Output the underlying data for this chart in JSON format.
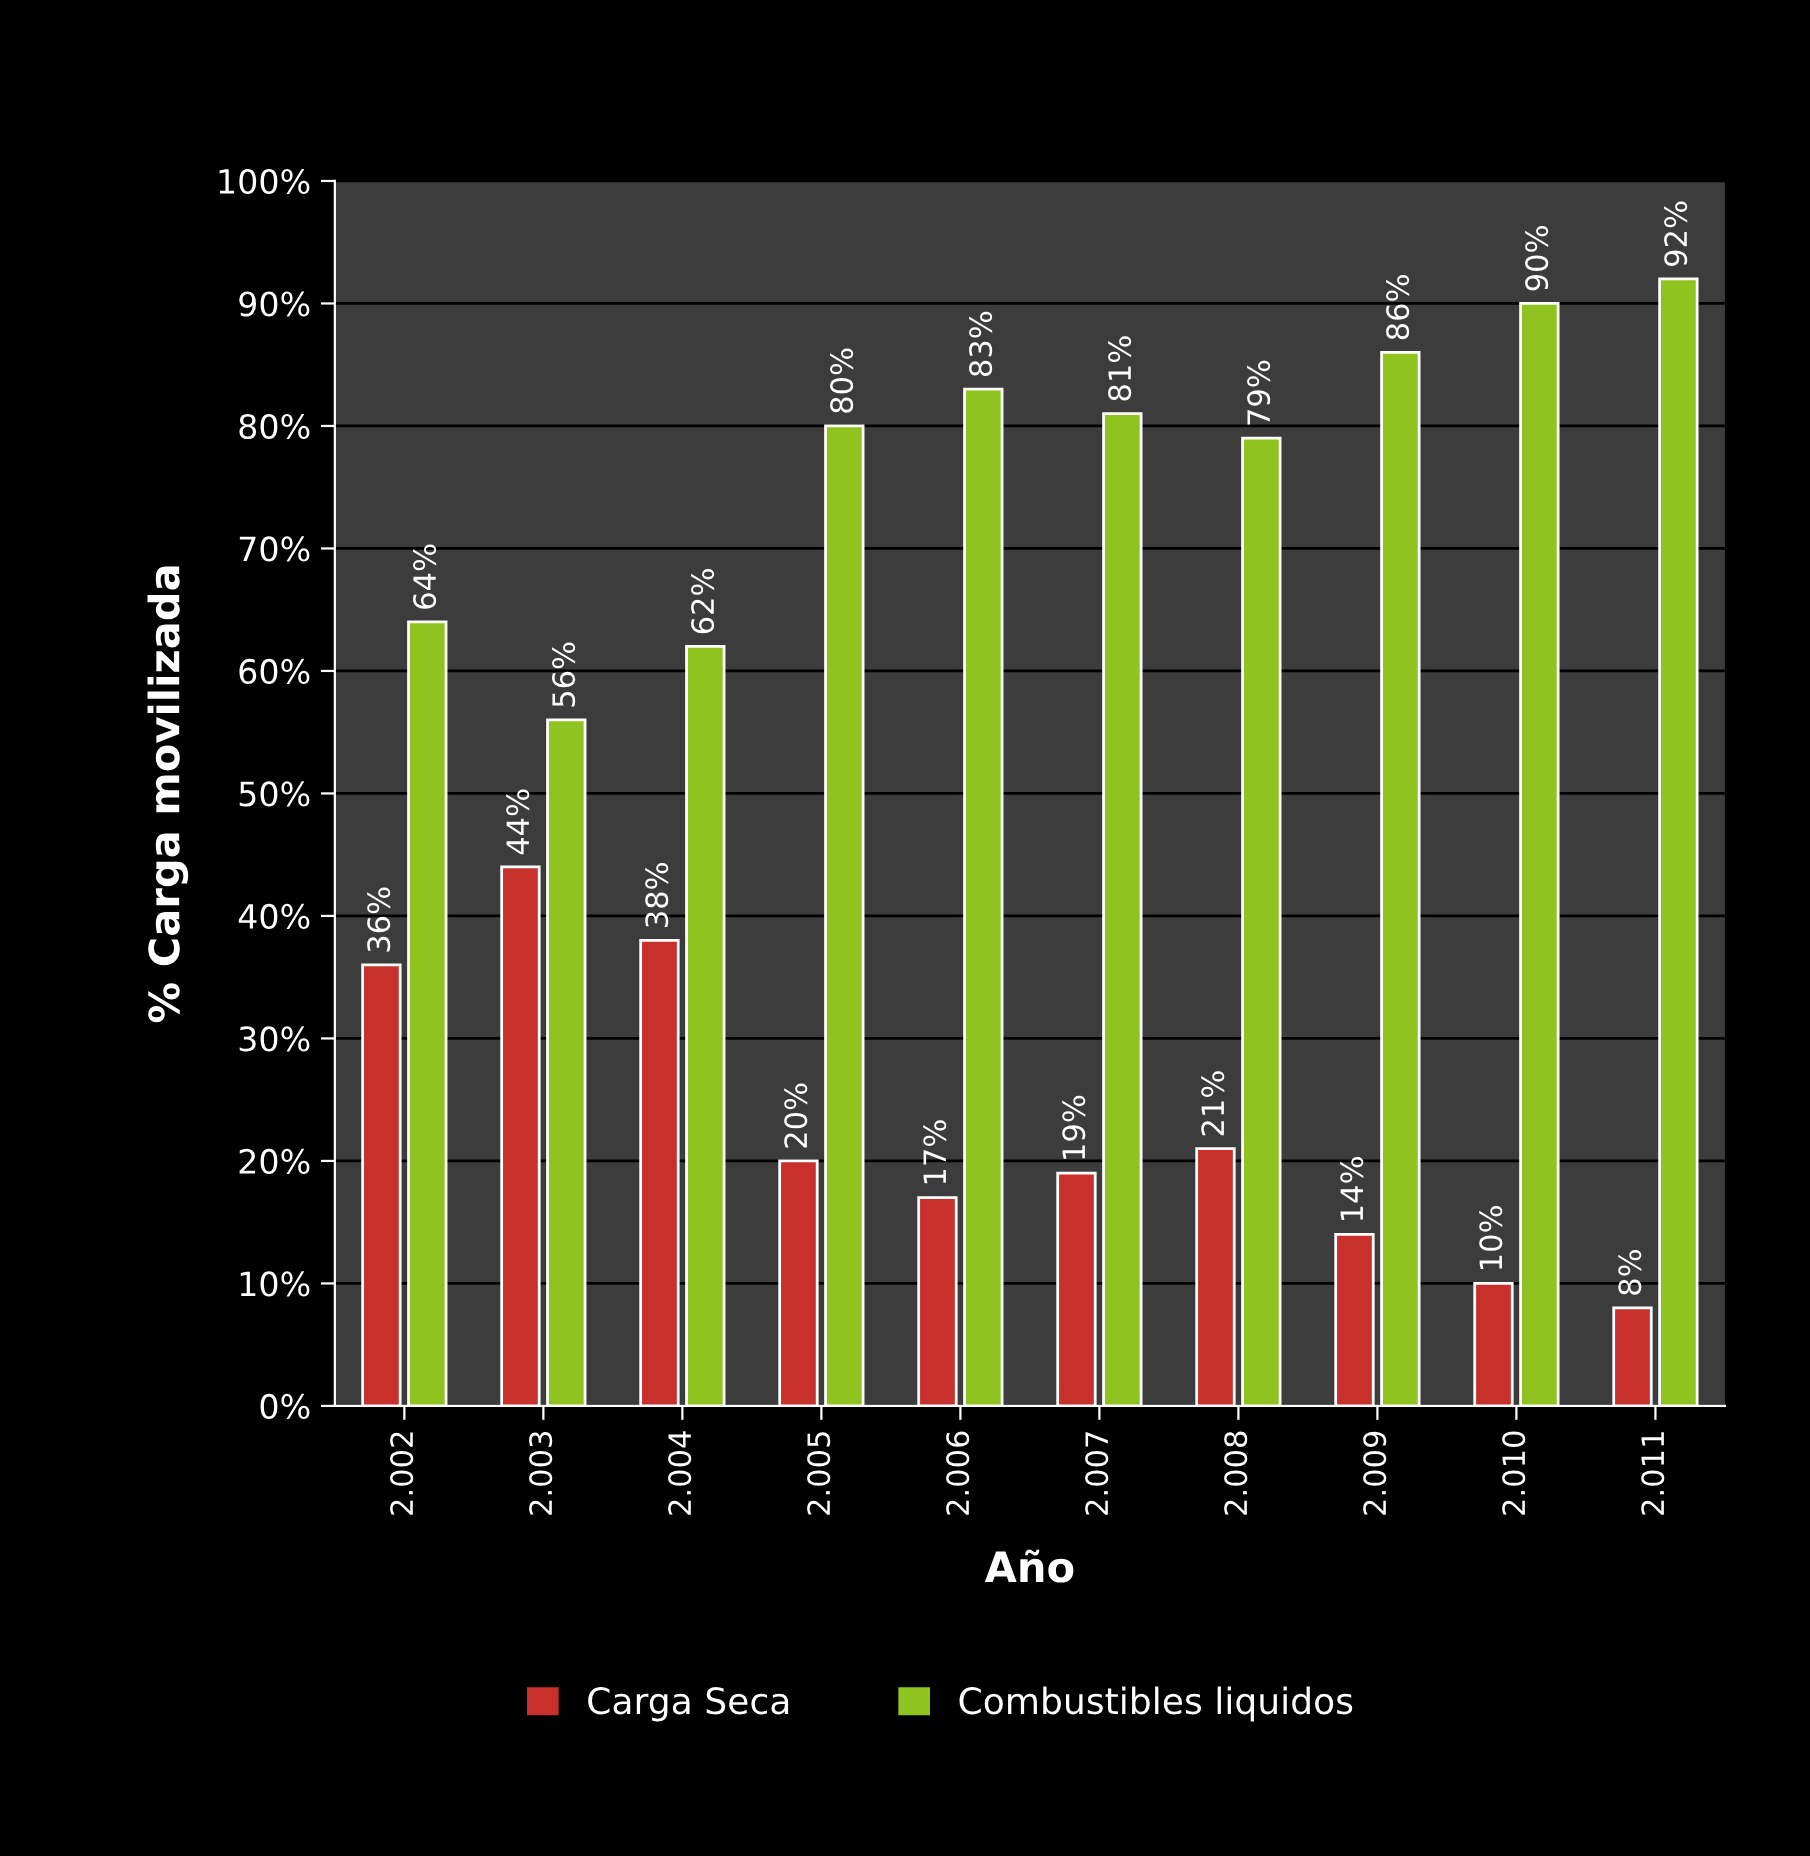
{
  "chart_data": {
    "type": "bar",
    "xlabel": "Año",
    "ylabel": "% Carga movilizada",
    "categories": [
      "2.002",
      "2.003",
      "2.004",
      "2.005",
      "2.006",
      "2.007",
      "2.008",
      "2.009",
      "2.010",
      "2.011"
    ],
    "series": [
      {
        "name": "Carga Seca",
        "color": "#c8302c",
        "values": [
          36,
          44,
          38,
          20,
          17,
          19,
          21,
          14,
          10,
          8
        ],
        "value_labels": [
          "36%",
          "44%",
          "38%",
          "20%",
          "17%",
          "19%",
          "21%",
          "14%",
          "10%",
          "8%"
        ]
      },
      {
        "name": "Combustibles liquidos",
        "color": "#8fc31f",
        "values": [
          64,
          56,
          62,
          80,
          83,
          81,
          79,
          86,
          90,
          92
        ],
        "value_labels": [
          "64%",
          "56%",
          "62%",
          "80%",
          "83%",
          "81%",
          "79%",
          "86%",
          "90%",
          "92%"
        ]
      }
    ],
    "ylim": [
      0,
      100
    ],
    "yticks": [
      {
        "value": 0,
        "label": "0%"
      },
      {
        "value": 10,
        "label": "10%"
      },
      {
        "value": 20,
        "label": "20%"
      },
      {
        "value": 30,
        "label": "30%"
      },
      {
        "value": 40,
        "label": "40%"
      },
      {
        "value": 50,
        "label": "50%"
      },
      {
        "value": 60,
        "label": "60%"
      },
      {
        "value": 70,
        "label": "70%"
      },
      {
        "value": 80,
        "label": "80%"
      },
      {
        "value": 90,
        "label": "90%"
      },
      {
        "value": 100,
        "label": "100%"
      }
    ],
    "grid": "y",
    "legend": "bottom"
  }
}
